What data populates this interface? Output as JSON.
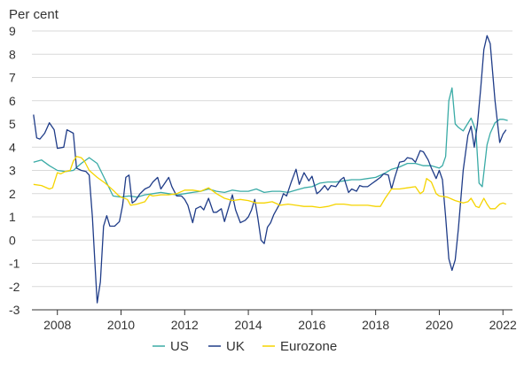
{
  "chart_data": {
    "type": "line",
    "title": "",
    "ylabel": "Per cent",
    "xlabel": "",
    "ylim": [
      -3,
      9
    ],
    "yticks": [
      -3,
      -2,
      -1,
      0,
      1,
      2,
      3,
      4,
      5,
      6,
      7,
      8,
      9
    ],
    "xlim": [
      2007.2,
      2022.3
    ],
    "xticks": [
      2008,
      2010,
      2012,
      2014,
      2016,
      2018,
      2020,
      2022
    ],
    "grid": "horizontal",
    "legend": "bottom-center",
    "colors": {
      "US": "#3aaba6",
      "UK": "#1f3c88",
      "Eurozone": "#f5d400"
    },
    "series": [
      {
        "name": "US",
        "x": [
          2007.25,
          2007.5,
          2007.75,
          2008.0,
          2008.25,
          2008.5,
          2008.75,
          2009.0,
          2009.25,
          2009.5,
          2009.75,
          2010.0,
          2010.25,
          2010.5,
          2010.75,
          2011.0,
          2011.25,
          2011.5,
          2011.75,
          2012.0,
          2012.25,
          2012.5,
          2012.75,
          2013.0,
          2013.25,
          2013.5,
          2013.75,
          2014.0,
          2014.25,
          2014.5,
          2014.75,
          2015.0,
          2015.25,
          2015.5,
          2015.75,
          2016.0,
          2016.25,
          2016.5,
          2016.75,
          2017.0,
          2017.25,
          2017.5,
          2017.75,
          2018.0,
          2018.25,
          2018.5,
          2018.75,
          2019.0,
          2019.25,
          2019.5,
          2019.75,
          2020.0,
          2020.1,
          2020.2,
          2020.3,
          2020.4,
          2020.5,
          2020.6,
          2020.75,
          2021.0,
          2021.15,
          2021.25,
          2021.35,
          2021.5,
          2021.6,
          2021.75,
          2021.9,
          2022.0,
          2022.15
        ],
        "values": [
          3.35,
          3.45,
          3.2,
          3.0,
          2.95,
          3.0,
          3.3,
          3.55,
          3.3,
          2.6,
          1.9,
          1.85,
          1.9,
          1.85,
          1.95,
          2.0,
          2.05,
          2.0,
          1.95,
          2.0,
          2.05,
          2.1,
          2.2,
          2.1,
          2.05,
          2.15,
          2.1,
          2.1,
          2.2,
          2.05,
          2.1,
          2.1,
          2.05,
          2.15,
          2.25,
          2.3,
          2.45,
          2.5,
          2.5,
          2.55,
          2.6,
          2.6,
          2.65,
          2.7,
          2.85,
          3.05,
          3.15,
          3.3,
          3.3,
          3.2,
          3.2,
          3.1,
          3.2,
          3.6,
          6.0,
          6.55,
          5.0,
          4.85,
          4.7,
          5.25,
          4.7,
          2.45,
          2.3,
          4.1,
          4.6,
          5.05,
          5.2,
          5.2,
          5.15
        ]
      },
      {
        "name": "UK",
        "x": [
          2007.25,
          2007.35,
          2007.45,
          2007.6,
          2007.75,
          2007.9,
          2008.0,
          2008.2,
          2008.3,
          2008.5,
          2008.6,
          2008.75,
          2008.9,
          2009.0,
          2009.1,
          2009.2,
          2009.25,
          2009.35,
          2009.45,
          2009.55,
          2009.65,
          2009.8,
          2009.95,
          2010.05,
          2010.15,
          2010.25,
          2010.35,
          2010.45,
          2010.6,
          2010.75,
          2010.9,
          2011.0,
          2011.15,
          2011.25,
          2011.35,
          2011.5,
          2011.6,
          2011.75,
          2011.9,
          2012.0,
          2012.1,
          2012.25,
          2012.35,
          2012.5,
          2012.6,
          2012.75,
          2012.9,
          2013.0,
          2013.15,
          2013.25,
          2013.35,
          2013.5,
          2013.6,
          2013.75,
          2013.9,
          2014.0,
          2014.1,
          2014.2,
          2014.3,
          2014.4,
          2014.5,
          2014.6,
          2014.7,
          2014.8,
          2015.0,
          2015.1,
          2015.2,
          2015.35,
          2015.5,
          2015.6,
          2015.75,
          2015.9,
          2016.0,
          2016.15,
          2016.25,
          2016.4,
          2016.5,
          2016.6,
          2016.75,
          2016.9,
          2017.0,
          2017.15,
          2017.25,
          2017.4,
          2017.5,
          2017.6,
          2017.75,
          2017.9,
          2018.0,
          2018.15,
          2018.25,
          2018.4,
          2018.5,
          2018.6,
          2018.75,
          2018.9,
          2019.0,
          2019.15,
          2019.25,
          2019.4,
          2019.5,
          2019.65,
          2019.75,
          2019.9,
          2020.0,
          2020.1,
          2020.2,
          2020.3,
          2020.4,
          2020.5,
          2020.6,
          2020.75,
          2020.9,
          2021.0,
          2021.1,
          2021.2,
          2021.3,
          2021.4,
          2021.5,
          2021.6,
          2021.75,
          2021.9,
          2022.0,
          2022.1
        ],
        "values": [
          5.4,
          4.4,
          4.35,
          4.6,
          5.05,
          4.75,
          3.95,
          4.0,
          4.75,
          4.6,
          3.1,
          3.0,
          2.95,
          2.8,
          1.0,
          -1.5,
          -2.7,
          -1.8,
          0.6,
          1.05,
          0.6,
          0.6,
          0.8,
          1.5,
          2.7,
          2.8,
          1.6,
          1.7,
          2.0,
          2.2,
          2.3,
          2.5,
          2.7,
          2.2,
          2.4,
          2.7,
          2.3,
          1.9,
          1.9,
          1.75,
          1.5,
          0.75,
          1.35,
          1.45,
          1.3,
          1.8,
          1.2,
          1.2,
          1.35,
          0.8,
          1.25,
          1.95,
          1.3,
          0.75,
          0.85,
          1.0,
          1.3,
          1.75,
          0.95,
          0.0,
          -0.15,
          0.55,
          0.75,
          1.1,
          1.6,
          2.0,
          1.9,
          2.5,
          3.05,
          2.4,
          2.9,
          2.55,
          2.75,
          2.0,
          2.1,
          2.35,
          2.15,
          2.35,
          2.3,
          2.6,
          2.7,
          2.05,
          2.2,
          2.1,
          2.35,
          2.3,
          2.3,
          2.45,
          2.55,
          2.7,
          2.85,
          2.8,
          2.2,
          2.7,
          3.35,
          3.4,
          3.55,
          3.5,
          3.35,
          3.85,
          3.8,
          3.45,
          3.1,
          2.65,
          3.0,
          2.6,
          1.0,
          -0.8,
          -1.3,
          -0.85,
          0.5,
          3.0,
          4.5,
          4.9,
          4.0,
          5.0,
          6.5,
          8.2,
          8.8,
          8.45,
          6.0,
          4.2,
          4.55,
          4.75
        ]
      },
      {
        "name": "Eurozone",
        "x": [
          2007.25,
          2007.5,
          2007.75,
          2007.85,
          2008.0,
          2008.1,
          2008.25,
          2008.4,
          2008.5,
          2008.6,
          2008.75,
          2008.85,
          2009.0,
          2009.25,
          2009.5,
          2009.75,
          2009.9,
          2010.0,
          2010.2,
          2010.3,
          2010.5,
          2010.75,
          2010.9,
          2011.0,
          2011.25,
          2011.5,
          2011.75,
          2012.0,
          2012.25,
          2012.5,
          2012.75,
          2013.0,
          2013.25,
          2013.5,
          2013.75,
          2014.0,
          2014.25,
          2014.5,
          2014.75,
          2015.0,
          2015.25,
          2015.5,
          2015.75,
          2016.0,
          2016.25,
          2016.5,
          2016.75,
          2017.0,
          2017.25,
          2017.5,
          2017.75,
          2018.0,
          2018.15,
          2018.3,
          2018.5,
          2018.75,
          2019.0,
          2019.25,
          2019.4,
          2019.5,
          2019.6,
          2019.75,
          2019.9,
          2020.0,
          2020.25,
          2020.5,
          2020.75,
          2020.9,
          2021.0,
          2021.15,
          2021.25,
          2021.4,
          2021.5,
          2021.6,
          2021.75,
          2021.9,
          2022.0,
          2022.1
        ],
        "values": [
          2.4,
          2.35,
          2.2,
          2.25,
          2.9,
          2.85,
          2.95,
          3.0,
          3.4,
          3.6,
          3.55,
          3.4,
          3.0,
          2.7,
          2.45,
          2.15,
          1.95,
          1.85,
          1.75,
          1.5,
          1.55,
          1.65,
          1.95,
          1.9,
          1.95,
          1.95,
          2.0,
          2.15,
          2.15,
          2.1,
          2.25,
          2.0,
          1.8,
          1.7,
          1.75,
          1.7,
          1.6,
          1.6,
          1.65,
          1.5,
          1.55,
          1.5,
          1.45,
          1.45,
          1.4,
          1.45,
          1.55,
          1.55,
          1.5,
          1.5,
          1.5,
          1.45,
          1.45,
          1.8,
          2.2,
          2.2,
          2.25,
          2.3,
          2.0,
          2.1,
          2.65,
          2.5,
          2.0,
          1.9,
          1.85,
          1.7,
          1.6,
          1.65,
          1.8,
          1.45,
          1.4,
          1.8,
          1.55,
          1.35,
          1.35,
          1.55,
          1.6,
          1.55
        ]
      }
    ]
  }
}
